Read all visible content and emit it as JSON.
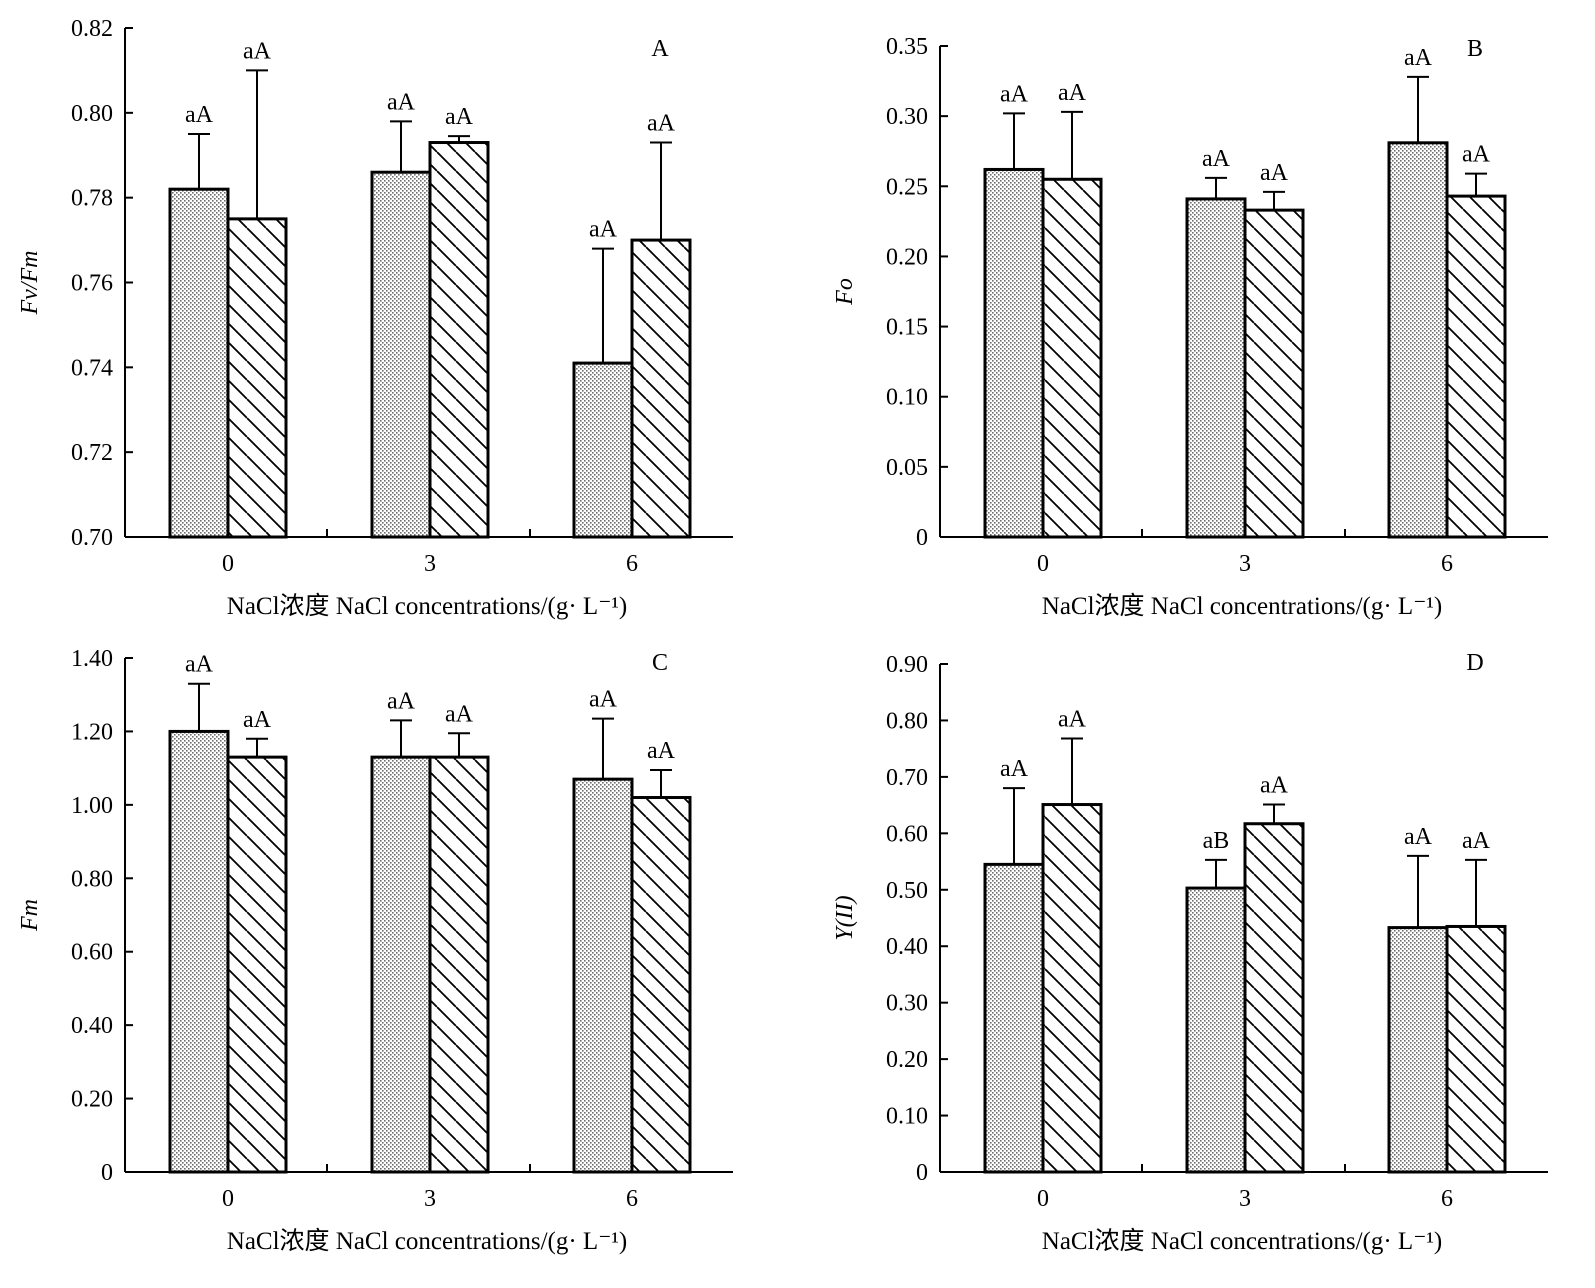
{
  "figure": {
    "colors": {
      "axis": "#000000",
      "bar_fill": "#ffffff",
      "dot_pattern": "#7a7a7a",
      "hatch": "#000000"
    }
  },
  "chart_data": [
    {
      "type": "bar",
      "panel_label": "A",
      "ylabel": "Fv/Fm",
      "xlabel": "NaCl浓度  NaCl concentrations/(g· L⁻¹)",
      "categories": [
        "0",
        "3",
        "6"
      ],
      "ylim": [
        0.7,
        0.82
      ],
      "yticks": [
        "0.70",
        "0.72",
        "0.74",
        "0.76",
        "0.78",
        "0.80",
        "0.82"
      ],
      "series": [
        {
          "pattern": "dotted",
          "values": [
            0.782,
            0.786,
            0.741
          ],
          "errors": [
            0.013,
            0.012,
            0.027
          ],
          "sig": [
            "aA",
            "aA",
            "aA"
          ]
        },
        {
          "pattern": "hatched",
          "values": [
            0.775,
            0.793,
            0.77
          ],
          "errors": [
            0.035,
            0.0015,
            0.023
          ],
          "sig": [
            "aA",
            "aA",
            "aA"
          ]
        }
      ]
    },
    {
      "type": "bar",
      "panel_label": "B",
      "ylabel": "Fo",
      "xlabel": "NaCl浓度  NaCl concentrations/(g· L⁻¹)",
      "categories": [
        "0",
        "3",
        "6"
      ],
      "ylim": [
        0,
        0.35
      ],
      "yticks": [
        "0",
        "0.05",
        "0.10",
        "0.15",
        "0.20",
        "0.25",
        "0.30",
        "0.35"
      ],
      "series": [
        {
          "pattern": "dotted",
          "values": [
            0.262,
            0.241,
            0.281
          ],
          "errors": [
            0.04,
            0.015,
            0.047
          ],
          "sig": [
            "aA",
            "aA",
            "aA"
          ]
        },
        {
          "pattern": "hatched",
          "values": [
            0.255,
            0.233,
            0.243
          ],
          "errors": [
            0.048,
            0.013,
            0.016
          ],
          "sig": [
            "aA",
            "aA",
            "aA"
          ]
        }
      ]
    },
    {
      "type": "bar",
      "panel_label": "C",
      "ylabel": "Fm",
      "xlabel": "NaCl浓度  NaCl concentrations/(g· L⁻¹)",
      "categories": [
        "0",
        "3",
        "6"
      ],
      "ylim": [
        0,
        1.4
      ],
      "yticks": [
        "0",
        "0.20",
        "0.40",
        "0.60",
        "0.80",
        "1.00",
        "1.20",
        "1.40"
      ],
      "series": [
        {
          "pattern": "dotted",
          "values": [
            1.2,
            1.13,
            1.07
          ],
          "errors": [
            0.13,
            0.1,
            0.165
          ],
          "sig": [
            "aA",
            "aA",
            "aA"
          ]
        },
        {
          "pattern": "hatched",
          "values": [
            1.13,
            1.13,
            1.02
          ],
          "errors": [
            0.05,
            0.065,
            0.075
          ],
          "sig": [
            "aA",
            "aA",
            "aA"
          ]
        }
      ]
    },
    {
      "type": "bar",
      "panel_label": "D",
      "ylabel": "Y(II)",
      "xlabel": "NaCl浓度  NaCl concentrations/(g· L⁻¹)",
      "categories": [
        "0",
        "3",
        "6"
      ],
      "ylim": [
        0,
        0.9
      ],
      "yticks": [
        "0",
        "0.10",
        "0.20",
        "0.30",
        "0.40",
        "0.50",
        "0.60",
        "0.70",
        "0.80",
        "0.90"
      ],
      "series": [
        {
          "pattern": "dotted",
          "values": [
            0.545,
            0.503,
            0.433
          ],
          "errors": [
            0.135,
            0.05,
            0.127
          ],
          "sig": [
            "aA",
            "aB",
            "aA"
          ]
        },
        {
          "pattern": "hatched",
          "values": [
            0.651,
            0.617,
            0.435
          ],
          "errors": [
            0.117,
            0.034,
            0.118
          ],
          "sig": [
            "aA",
            "aA",
            "aA"
          ]
        }
      ]
    }
  ]
}
